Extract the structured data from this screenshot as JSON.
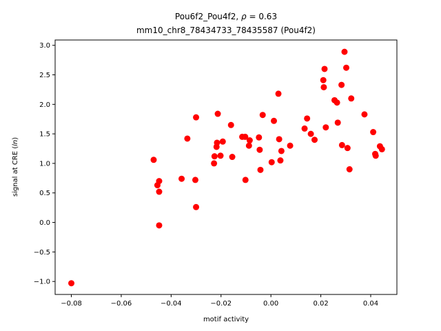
{
  "chart_data": {
    "type": "scatter",
    "title_prefix": "Pou6f2_Pou4f2, ",
    "title_rho_symbol": "ρ",
    "title_rho_value": " = 0.63",
    "subtitle": "mm10_chr8_78434733_78435587 (Pou4f2)",
    "xlabel": "motif activity",
    "ylabel_prefix": "signal at CRE (",
    "ylabel_italic": "ln",
    "ylabel_suffix": ")",
    "xlim": [
      -0.0865,
      0.0505
    ],
    "ylim": [
      -1.22,
      3.09
    ],
    "xticks": [
      -0.08,
      -0.06,
      -0.04,
      -0.02,
      0.0,
      0.02,
      0.04
    ],
    "xtick_labels": [
      "−0.08",
      "−0.06",
      "−0.04",
      "−0.02",
      "0.00",
      "0.02",
      "0.04"
    ],
    "yticks": [
      -1.0,
      -0.5,
      0.0,
      0.5,
      1.0,
      1.5,
      2.0,
      2.5,
      3.0
    ],
    "ytick_labels": [
      "−1.0",
      "−0.5",
      "0.0",
      "0.5",
      "1.0",
      "1.5",
      "2.0",
      "2.5",
      "3.0"
    ],
    "marker_color": "#ff0000",
    "points": [
      {
        "x": -0.08,
        "y": -1.03
      },
      {
        "x": -0.047,
        "y": 1.06
      },
      {
        "x": -0.0455,
        "y": 0.63
      },
      {
        "x": -0.0448,
        "y": 0.7
      },
      {
        "x": -0.0448,
        "y": 0.52
      },
      {
        "x": -0.0448,
        "y": -0.05
      },
      {
        "x": -0.0358,
        "y": 0.74
      },
      {
        "x": -0.0335,
        "y": 1.42
      },
      {
        "x": -0.0303,
        "y": 0.72
      },
      {
        "x": -0.03,
        "y": 1.78
      },
      {
        "x": -0.03,
        "y": 0.26
      },
      {
        "x": -0.0228,
        "y": 1.0
      },
      {
        "x": -0.0226,
        "y": 1.12
      },
      {
        "x": -0.0218,
        "y": 1.28
      },
      {
        "x": -0.0216,
        "y": 1.35
      },
      {
        "x": -0.0213,
        "y": 1.84
      },
      {
        "x": -0.0202,
        "y": 1.13
      },
      {
        "x": -0.0193,
        "y": 1.37
      },
      {
        "x": -0.016,
        "y": 1.65
      },
      {
        "x": -0.0155,
        "y": 1.11
      },
      {
        "x": -0.0115,
        "y": 1.45
      },
      {
        "x": -0.0103,
        "y": 1.45
      },
      {
        "x": -0.0102,
        "y": 0.72
      },
      {
        "x": -0.0088,
        "y": 1.3
      },
      {
        "x": -0.0085,
        "y": 1.39
      },
      {
        "x": -0.0048,
        "y": 1.44
      },
      {
        "x": -0.0045,
        "y": 1.23
      },
      {
        "x": -0.0042,
        "y": 0.89
      },
      {
        "x": -0.0033,
        "y": 1.82
      },
      {
        "x": 0.0003,
        "y": 1.02
      },
      {
        "x": 0.0012,
        "y": 1.72
      },
      {
        "x": 0.003,
        "y": 2.18
      },
      {
        "x": 0.0033,
        "y": 1.41
      },
      {
        "x": 0.0038,
        "y": 1.05
      },
      {
        "x": 0.0042,
        "y": 1.21
      },
      {
        "x": 0.0077,
        "y": 1.3
      },
      {
        "x": 0.0135,
        "y": 1.59
      },
      {
        "x": 0.0145,
        "y": 1.76
      },
      {
        "x": 0.016,
        "y": 1.5
      },
      {
        "x": 0.0175,
        "y": 1.4
      },
      {
        "x": 0.021,
        "y": 2.41
      },
      {
        "x": 0.0212,
        "y": 2.29
      },
      {
        "x": 0.0215,
        "y": 2.6
      },
      {
        "x": 0.022,
        "y": 1.61
      },
      {
        "x": 0.0255,
        "y": 2.07
      },
      {
        "x": 0.0265,
        "y": 2.03
      },
      {
        "x": 0.0268,
        "y": 1.69
      },
      {
        "x": 0.0283,
        "y": 2.33
      },
      {
        "x": 0.0285,
        "y": 1.31
      },
      {
        "x": 0.0295,
        "y": 2.89
      },
      {
        "x": 0.0302,
        "y": 2.62
      },
      {
        "x": 0.0307,
        "y": 1.26
      },
      {
        "x": 0.0315,
        "y": 0.9
      },
      {
        "x": 0.0322,
        "y": 2.1
      },
      {
        "x": 0.0375,
        "y": 1.83
      },
      {
        "x": 0.041,
        "y": 1.53
      },
      {
        "x": 0.0418,
        "y": 1.16
      },
      {
        "x": 0.042,
        "y": 1.13
      },
      {
        "x": 0.0437,
        "y": 1.29
      },
      {
        "x": 0.0445,
        "y": 1.24
      }
    ]
  }
}
